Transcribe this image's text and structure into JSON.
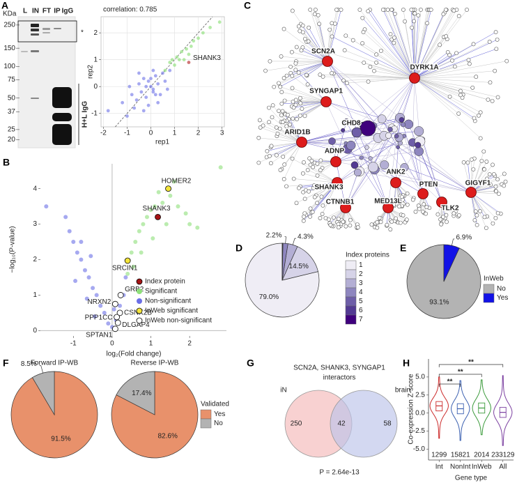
{
  "blot": {
    "panel": "A",
    "unit": "KDa",
    "lanes": [
      "L",
      "IN",
      "FT",
      "IP",
      "IgG"
    ],
    "markers": [
      250,
      150,
      100,
      75,
      50,
      37,
      25,
      20
    ],
    "asterisk": "*",
    "igg_label": "H+L IgG"
  },
  "network": {
    "panel": "C",
    "nodes": [
      {
        "label": "SCN2A"
      },
      {
        "label": "DYRK1A"
      },
      {
        "label": "SYNGAP1"
      },
      {
        "label": "CHD8"
      },
      {
        "label": "ARID1B"
      },
      {
        "label": "ADNP"
      },
      {
        "label": "SHANK3"
      },
      {
        "label": "ANK2"
      },
      {
        "label": "PTEN"
      },
      {
        "label": "GIGYF1"
      },
      {
        "label": "TLK2"
      },
      {
        "label": "CTNNB1"
      },
      {
        "label": "MED13L"
      }
    ]
  },
  "chart_data": [
    {
      "type": "scatter",
      "title": "correlation: 0.785",
      "xlabel": "rep1",
      "ylabel": "rep2",
      "xlim": [
        -2.1,
        3.1
      ],
      "ylim": [
        -1.5,
        2.6
      ],
      "xticks": [
        -2,
        -1,
        0,
        1,
        2,
        3
      ],
      "yticks": [
        -1,
        0,
        1,
        2
      ],
      "grid": true,
      "identity_line": true,
      "series": [
        {
          "color": "#6b6fe6",
          "x": [
            -1.8,
            -1.2,
            -1.0,
            -0.8,
            -0.6,
            -0.5,
            -0.4,
            -0.3,
            -0.2,
            -0.1,
            0,
            0.1,
            0.2,
            0.3,
            0.4,
            0.5,
            0.6,
            0.8,
            -0.7,
            -0.3,
            0.1,
            0.3,
            -0.9,
            0.7,
            -0.1,
            0.2,
            -0.5,
            0.0,
            -0.2,
            0.1
          ],
          "values": [
            -0.9,
            -0.6,
            -1.1,
            -0.3,
            -0.5,
            0.1,
            -0.2,
            0.3,
            -0.4,
            0.2,
            0.0,
            -0.2,
            0.4,
            0.1,
            -0.3,
            0.5,
            0.2,
            0.6,
            -0.8,
            -0.9,
            0.6,
            -0.6,
            0.0,
            -0.1,
            -0.7,
            -0.3,
            0.5,
            0.3,
            0.0,
            -0.1
          ]
        },
        {
          "color": "#86dd70",
          "x": [
            0.6,
            0.8,
            1.0,
            1.1,
            1.2,
            1.3,
            1.5,
            1.6,
            1.8,
            2.0,
            2.2,
            2.5,
            0.9,
            1.4,
            1.7,
            2.9
          ],
          "values": [
            0.6,
            0.9,
            0.8,
            1.1,
            1.0,
            1.3,
            1.4,
            1.2,
            1.7,
            1.8,
            2.0,
            2.2,
            1.0,
            1.0,
            1.5,
            2.4
          ]
        },
        {
          "color": "#b01a1a",
          "x": [
            1.6
          ],
          "values": [
            0.9
          ],
          "labels": [
            "SHANK3"
          ]
        }
      ]
    },
    {
      "type": "scatter",
      "panel": "B",
      "xlabel": "log₂(Fold change)",
      "ylabel": "−log₁₀(P-value)",
      "xlim": [
        -1.85,
        2.95
      ],
      "ylim": [
        -0.15,
        4.7
      ],
      "xticks": [
        -1,
        0,
        1,
        2
      ],
      "yticks": [
        0,
        1,
        2,
        3,
        4
      ],
      "grid": false,
      "legend": "lower right",
      "series": [
        {
          "name": "Index protein",
          "color": "#a51515",
          "edgecolor": "#000000",
          "x": [
            1.18
          ],
          "values": [
            3.2
          ],
          "labels": [
            "SHANK3"
          ]
        },
        {
          "name": "Significant",
          "color": "#8ee07a",
          "x": [
            0.4,
            0.5,
            0.55,
            0.6,
            0.7,
            0.75,
            0.8,
            0.9,
            1.0,
            1.05,
            1.1,
            1.2,
            1.3,
            1.4,
            1.5,
            1.6,
            1.7,
            1.9,
            2.0,
            2.2,
            2.8
          ],
          "values": [
            1.6,
            2.2,
            1.8,
            2.5,
            2.8,
            2.2,
            3.0,
            3.2,
            3.4,
            2.6,
            3.5,
            3.9,
            3.6,
            3.0,
            3.8,
            4.2,
            3.5,
            3.3,
            3.0,
            2.9,
            4.6
          ]
        },
        {
          "name": "Non-significant",
          "color": "#6b6fe6",
          "x": [
            -1.7,
            -1.2,
            -1.1,
            -1.0,
            -0.95,
            -0.9,
            -0.8,
            -0.8,
            -0.7,
            -0.65,
            -0.6,
            -0.55,
            -0.5,
            -0.45,
            -0.4,
            -0.3,
            -0.2,
            -0.1,
            0.0,
            0.05,
            0.1,
            0.2,
            0.3,
            0.35
          ],
          "values": [
            3.5,
            3.2,
            2.8,
            2.5,
            1.4,
            2.2,
            2.0,
            2.5,
            1.7,
            0.9,
            1.5,
            2.1,
            1.2,
            0.4,
            1.0,
            0.7,
            0.5,
            0.2,
            0.1,
            0.6,
            0.3,
            0.7,
            1.0,
            1.5
          ]
        },
        {
          "name": "InWeb significant",
          "color": "#f3e43a",
          "edgecolor": "#000000",
          "x": [
            1.45,
            0.4
          ],
          "values": [
            4.0,
            1.97
          ],
          "labels": [
            "HOMER2",
            "SRCIN1"
          ]
        },
        {
          "name": "InWeb non-significant",
          "color": "#ffffff",
          "edgecolor": "#000000",
          "x": [
            0.22,
            0.08,
            0.2,
            0.12,
            0.15,
            0.08
          ],
          "values": [
            1.0,
            0.75,
            0.5,
            0.38,
            0.22,
            0.05
          ],
          "labels": [
            "GRB2",
            "NRXN2",
            "CSNK2B",
            "PPP1CC",
            "DLGAP4",
            "SPTAN1"
          ]
        }
      ]
    },
    {
      "type": "pie",
      "panel": "D",
      "legend_title": "Index proteins",
      "direction": "counterclockwise",
      "categories": [
        "1",
        "2",
        "3",
        "4",
        "5",
        "6",
        "7"
      ],
      "colors": [
        "#efedf5",
        "#d6d3e8",
        "#b3aed4",
        "#8e86bf",
        "#6e5ea8",
        "#533a93",
        "#3f007d"
      ],
      "values": [
        79.0,
        14.5,
        4.3,
        2.2,
        0.1,
        0.1,
        0.1
      ],
      "value_labels": [
        "79.0%",
        "14.5%",
        "4.3%",
        "2.2%",
        null,
        null,
        null
      ]
    },
    {
      "type": "pie",
      "panel": "E",
      "legend_title": "InWeb",
      "direction": "counterclockwise",
      "categories": [
        "No",
        "Yes"
      ],
      "colors": [
        "#b3b3b3",
        "#1212e6"
      ],
      "values": [
        93.1,
        6.9
      ],
      "value_labels": [
        "93.1%",
        "6.9%"
      ]
    },
    {
      "type": "pie",
      "panel": "F",
      "legend_title": "Validated",
      "direction": "clockwise",
      "categories": [
        "Yes",
        "No"
      ],
      "colors": [
        "#e8916b",
        "#b3b3b3"
      ],
      "pies": [
        {
          "title": "Forward IP-WB",
          "values": [
            91.5,
            8.5
          ],
          "value_labels": [
            "91.5%",
            "8.5%"
          ]
        },
        {
          "title": "Reverse IP-WB",
          "values": [
            82.6,
            17.4
          ],
          "value_labels": [
            "82.6%",
            "17.4%"
          ]
        }
      ]
    },
    {
      "type": "venn",
      "panel": "G",
      "title": [
        "SCN2A, SHANK3, SYNGAP1",
        "interactors"
      ],
      "sets": [
        {
          "name": "iN",
          "color": "#f4b8b8"
        },
        {
          "name": "brain",
          "color": "#bcc3ea"
        }
      ],
      "values": [
        250,
        42,
        58
      ],
      "annotation": "P = 2.64e-13"
    },
    {
      "type": "violin",
      "panel": "H",
      "ylabel": "Co-expression Z-score",
      "xlabel": "Gene type",
      "categories": [
        "Int",
        "NonInt",
        "InWeb",
        "All"
      ],
      "colors": [
        "#cc2a2a",
        "#3a5fb0",
        "#3a9a3a",
        "#7b3fa0"
      ],
      "counts": [
        1299,
        15821,
        2014,
        233129
      ],
      "min": [
        -3.5,
        -3.8,
        -3.0,
        -4.5
      ],
      "q1": [
        0.3,
        -0.1,
        0.0,
        -0.6
      ],
      "median": [
        1.0,
        0.6,
        0.7,
        0.1
      ],
      "q3": [
        1.6,
        1.3,
        1.4,
        0.8
      ],
      "max": [
        5.0,
        4.5,
        4.6,
        5.2
      ],
      "ylim": [
        -6.5,
        7.5
      ],
      "yticks": [
        {
          "value": -5,
          "label": "-5.0"
        },
        {
          "value": -2.5,
          "label": "-2.5"
        },
        {
          "value": 0,
          "label": "0.0"
        },
        {
          "value": 2.5,
          "label": "2.5"
        },
        {
          "value": 5,
          "label": "5.0"
        }
      ],
      "significance": [
        {
          "from": "Int",
          "to": "NonInt",
          "label": "**"
        },
        {
          "from": "Int",
          "to": "InWeb",
          "label": "**"
        },
        {
          "from": "Int",
          "to": "All",
          "label": "**"
        }
      ]
    }
  ]
}
